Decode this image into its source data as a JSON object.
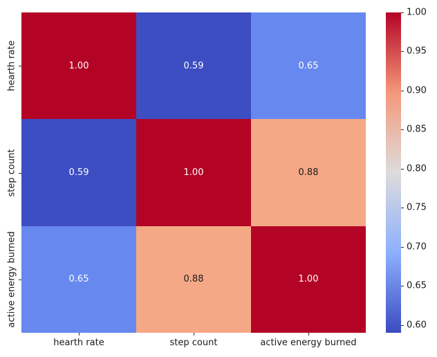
{
  "chart_data": {
    "type": "heatmap",
    "title": "",
    "xlabel": "",
    "ylabel": "",
    "x_categories": [
      "hearth rate",
      "step count",
      "active energy burned"
    ],
    "y_categories": [
      "hearth rate",
      "step count",
      "active energy burned"
    ],
    "matrix": [
      [
        1.0,
        0.59,
        0.65
      ],
      [
        0.59,
        1.0,
        0.88
      ],
      [
        0.65,
        0.88,
        1.0
      ]
    ],
    "cell_labels": [
      [
        "1.00",
        "0.59",
        "0.65"
      ],
      [
        "0.59",
        "1.00",
        "0.88"
      ],
      [
        "0.65",
        "0.88",
        "1.00"
      ]
    ],
    "cell_colors": [
      [
        "#b40426",
        "#3c4ec2",
        "#6788ee"
      ],
      [
        "#3c4ec2",
        "#b40426",
        "#f5a886"
      ],
      [
        "#6788ee",
        "#f5a886",
        "#b40426"
      ]
    ],
    "cell_text_colors": [
      [
        "#ffffff",
        "#ffffff",
        "#ffffff"
      ],
      [
        "#ffffff",
        "#ffffff",
        "#1b1b1b"
      ],
      [
        "#ffffff",
        "#1b1b1b",
        "#ffffff"
      ]
    ],
    "colormap": "coolwarm",
    "vmin": 0.59,
    "vmax": 1.0,
    "grid": false,
    "legend_position": "right-colorbar",
    "colorbar_tick_labels": [
      "1.00",
      "0.95",
      "0.90",
      "0.85",
      "0.80",
      "0.75",
      "0.70",
      "0.65",
      "0.60"
    ],
    "colorbar_tick_values": [
      1.0,
      0.95,
      0.9,
      0.85,
      0.8,
      0.75,
      0.7,
      0.65,
      0.6
    ],
    "colormap_stops": [
      {
        "pos": 0.0,
        "color": "#3b4cc0"
      },
      {
        "pos": 0.25,
        "color": "#8db0fe"
      },
      {
        "pos": 0.5,
        "color": "#dddcdc"
      },
      {
        "pos": 0.75,
        "color": "#f4987a"
      },
      {
        "pos": 1.0,
        "color": "#b40426"
      }
    ]
  }
}
